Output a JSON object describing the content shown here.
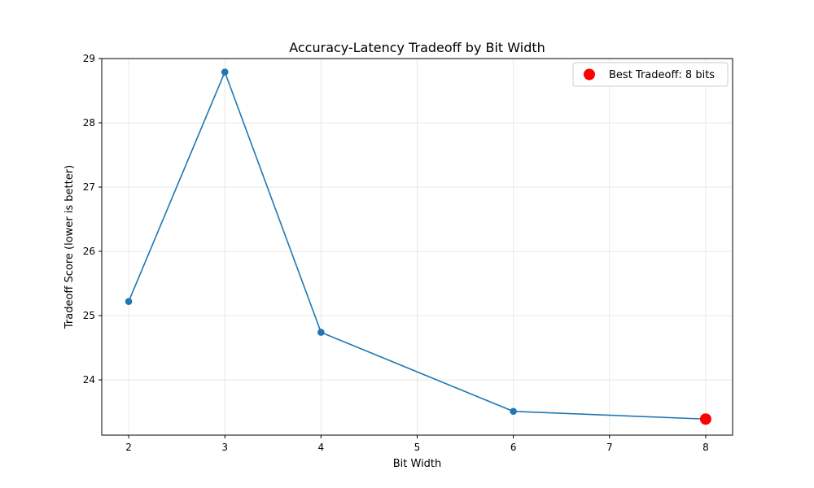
{
  "chart_data": {
    "type": "line",
    "title": "Accuracy-Latency Tradeoff by Bit Width",
    "xlabel": "Bit Width",
    "ylabel": "Tradeoff Score (lower is better)",
    "xlim": [
      1.72,
      8.28
    ],
    "ylim": [
      23.14,
      29.0
    ],
    "xticks": [
      2,
      3,
      4,
      5,
      6,
      7,
      8
    ],
    "yticks": [
      24,
      25,
      26,
      27,
      28,
      29
    ],
    "grid": true,
    "legend_position": "top-right",
    "series": [
      {
        "x": [
          2,
          3,
          4,
          6,
          8
        ],
        "y": [
          25.22,
          28.79,
          24.74,
          23.51,
          23.39
        ],
        "color": "#1f77b4"
      }
    ],
    "highlight": {
      "label": "Best Tradeoff: 8 bits",
      "x": 8,
      "y": 23.39,
      "color": "#ff0000"
    }
  }
}
